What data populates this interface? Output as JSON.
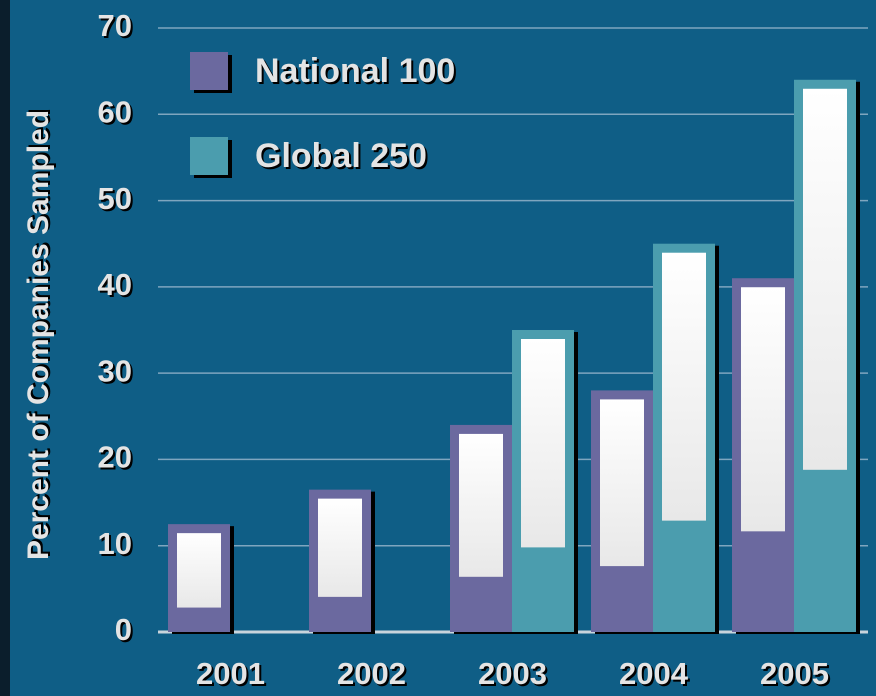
{
  "chart_data": {
    "type": "bar",
    "y_label": "Percent of Companies Sampled",
    "categories": [
      "2001",
      "2002",
      "2003",
      "2004",
      "2005"
    ],
    "series": [
      {
        "name": "National 100",
        "color": "#6b699f",
        "values": [
          12.5,
          16.5,
          24,
          28,
          41
        ]
      },
      {
        "name": "Global 250",
        "color": "#4b9dae",
        "values": [
          null,
          null,
          35,
          45,
          64
        ]
      }
    ],
    "ylim": [
      0,
      70
    ],
    "yticks": [
      0,
      10,
      20,
      30,
      40,
      50,
      60,
      70
    ],
    "grid": true,
    "legend": "top-left"
  }
}
